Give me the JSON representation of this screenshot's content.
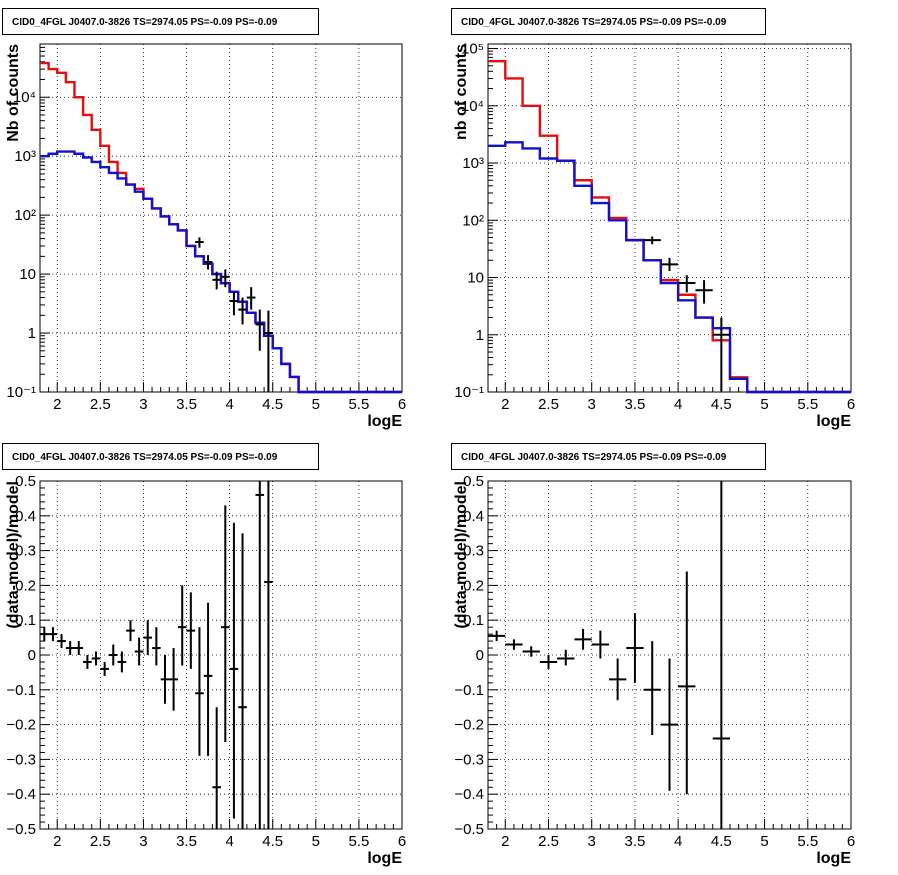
{
  "chart_data": [
    {
      "id": "top-left",
      "type": "step-histogram",
      "title": "CID0_4FGL J0407.0-3826 TS=2974.05 PS=-0.09 PS=-0.09",
      "xlabel": "logE",
      "ylabel": "Nb of counts",
      "xlim": [
        1.8,
        6.0
      ],
      "ylim": [
        0.1,
        80000
      ],
      "yscale": "log",
      "grid": true,
      "x_ticks": [
        2,
        2.5,
        3,
        3.5,
        4,
        4.5,
        5,
        5.5,
        6
      ],
      "x_tick_labels": [
        "2",
        "2.5",
        "3",
        "3.5",
        "4",
        "4.5",
        "5",
        "5.5",
        "6"
      ],
      "y_ticks": [
        0.1,
        1,
        10,
        100,
        1000,
        10000
      ],
      "y_tick_labels": [
        "10⁻¹",
        "1",
        "10",
        "10²",
        "10³",
        "10⁴"
      ],
      "bin_edges": [
        1.8,
        1.9,
        2.0,
        2.1,
        2.2,
        2.3,
        2.4,
        2.5,
        2.6,
        2.7,
        2.8,
        2.9,
        3.0,
        3.1,
        3.2,
        3.3,
        3.4,
        3.5,
        3.6,
        3.7,
        3.8,
        3.9,
        4.0,
        4.1,
        4.2,
        4.3,
        4.4,
        4.5,
        4.6,
        4.7,
        4.8,
        4.9,
        5.0,
        5.1,
        5.2,
        5.3,
        5.4,
        5.5,
        5.6,
        5.7,
        5.8,
        5.9,
        6.0
      ],
      "series": [
        {
          "color": "#e01010",
          "values": [
            38000,
            30000,
            26000,
            18000,
            10000,
            5000,
            2800,
            1500,
            800,
            520,
            330,
            280,
            190,
            130,
            95,
            70,
            55,
            30,
            20,
            15,
            10,
            7,
            5,
            3.4,
            2.2,
            1.5,
            0.9,
            0.55,
            0.3,
            0.18,
            0.1,
            0.1,
            0.1,
            0.1,
            0.1,
            0.1,
            0.1,
            0.1,
            0.1,
            0.1,
            0.1,
            0.1
          ]
        },
        {
          "color": "#1010d0",
          "values": [
            1000,
            1100,
            1200,
            1200,
            1100,
            950,
            800,
            650,
            520,
            420,
            330,
            250,
            190,
            130,
            95,
            70,
            55,
            30,
            20,
            15,
            10,
            7,
            5,
            3.4,
            2.2,
            1.5,
            0.9,
            0.55,
            0.3,
            0.18,
            0.1,
            0.1,
            0.1,
            0.1,
            0.1,
            0.1,
            0.1,
            0.1,
            0.1,
            0.1,
            0.1,
            0.1
          ]
        }
      ],
      "data_points": [
        {
          "x": 3.65,
          "y": 35,
          "ylo": 28,
          "yhi": 42,
          "xerr": 0.05
        },
        {
          "x": 3.75,
          "y": 16,
          "ylo": 12,
          "yhi": 21,
          "xerr": 0.05
        },
        {
          "x": 3.85,
          "y": 8,
          "ylo": 5.5,
          "yhi": 11,
          "xerr": 0.05
        },
        {
          "x": 3.95,
          "y": 9,
          "ylo": 6,
          "yhi": 12,
          "xerr": 0.05
        },
        {
          "x": 4.05,
          "y": 3.5,
          "ylo": 2,
          "yhi": 5,
          "xerr": 0.05
        },
        {
          "x": 4.15,
          "y": 2.5,
          "ylo": 1.4,
          "yhi": 4,
          "xerr": 0.05
        },
        {
          "x": 4.25,
          "y": 4,
          "ylo": 2.5,
          "yhi": 6,
          "xerr": 0.05
        },
        {
          "x": 4.35,
          "y": 1.4,
          "ylo": 0.5,
          "yhi": 2.5,
          "xerr": 0.05
        },
        {
          "x": 4.45,
          "y": 1.0,
          "ylo": 0.1,
          "yhi": 2.4,
          "xerr": 0.05
        }
      ]
    },
    {
      "id": "top-right",
      "type": "step-histogram",
      "title": "CID0_4FGL J0407.0-3826 TS=2974.05 PS=-0.09 PS=-0.09",
      "xlabel": "logE",
      "ylabel": "nb of counts",
      "xlim": [
        1.8,
        6.0
      ],
      "ylim": [
        0.1,
        120000
      ],
      "yscale": "log",
      "grid": true,
      "x_ticks": [
        2,
        2.5,
        3,
        3.5,
        4,
        4.5,
        5,
        5.5,
        6
      ],
      "x_tick_labels": [
        "2",
        "2.5",
        "3",
        "3.5",
        "4",
        "4.5",
        "5",
        "5.5",
        "6"
      ],
      "y_ticks": [
        0.1,
        1,
        10,
        100,
        1000,
        10000,
        100000
      ],
      "y_tick_labels": [
        "10⁻¹",
        "1",
        "10",
        "10²",
        "10³",
        "10⁴",
        "10⁵"
      ],
      "bin_edges": [
        1.8,
        2.0,
        2.2,
        2.4,
        2.6,
        2.8,
        3.0,
        3.2,
        3.4,
        3.6,
        3.8,
        4.0,
        4.2,
        4.4,
        4.6,
        4.8,
        5.0,
        5.2,
        5.4,
        5.6,
        5.8,
        6.0
      ],
      "series": [
        {
          "color": "#e01010",
          "values": [
            60000,
            30000,
            10000,
            3000,
            1100,
            500,
            250,
            110,
            45,
            20,
            9,
            5,
            2,
            0.8,
            0.18,
            0.1,
            0.1,
            0.1,
            0.1,
            0.1,
            0.1
          ]
        },
        {
          "color": "#1010d0",
          "values": [
            2000,
            2300,
            1800,
            1200,
            1100,
            400,
            200,
            100,
            45,
            20,
            8,
            4,
            2,
            1.3,
            0.17,
            0.1,
            0.1,
            0.1,
            0.1,
            0.1,
            0.1
          ]
        }
      ],
      "data_points": [
        {
          "x": 3.7,
          "y": 45,
          "ylo": 38,
          "yhi": 52,
          "xerr": 0.1
        },
        {
          "x": 3.9,
          "y": 17,
          "ylo": 13,
          "yhi": 22,
          "xerr": 0.1
        },
        {
          "x": 4.1,
          "y": 8,
          "ylo": 5.5,
          "yhi": 11,
          "xerr": 0.1
        },
        {
          "x": 4.3,
          "y": 6,
          "ylo": 3.5,
          "yhi": 9,
          "xerr": 0.1
        },
        {
          "x": 4.5,
          "y": 1.0,
          "ylo": 0.1,
          "yhi": 2.0,
          "xerr": 0.1
        }
      ]
    },
    {
      "id": "bottom-left",
      "type": "scatter-errorbar",
      "title": "CID0_4FGL J0407.0-3826 TS=2974.05 PS=-0.09 PS=-0.09",
      "xlabel": "logE",
      "ylabel": "(data-model)/model",
      "xlim": [
        1.8,
        6.0
      ],
      "ylim": [
        -0.5,
        0.5
      ],
      "yscale": "linear",
      "grid": true,
      "x_ticks": [
        2,
        2.5,
        3,
        3.5,
        4,
        4.5,
        5,
        5.5,
        6
      ],
      "x_tick_labels": [
        "2",
        "2.5",
        "3",
        "3.5",
        "4",
        "4.5",
        "5",
        "5.5",
        "6"
      ],
      "y_ticks": [
        -0.5,
        -0.4,
        -0.3,
        -0.2,
        -0.1,
        0,
        0.1,
        0.2,
        0.3,
        0.4,
        0.5
      ],
      "y_tick_labels": [
        "−0.5",
        "−0.4",
        "−0.3",
        "−0.2",
        "−0.1",
        "0",
        "0.1",
        "0.2",
        "0.3",
        "0.4",
        "0.5"
      ],
      "data_points": [
        {
          "x": 1.85,
          "y": 0.06,
          "ylo": 0.04,
          "yhi": 0.08,
          "xerr": 0.05
        },
        {
          "x": 1.95,
          "y": 0.06,
          "ylo": 0.04,
          "yhi": 0.08,
          "xerr": 0.05
        },
        {
          "x": 2.05,
          "y": 0.04,
          "ylo": 0.02,
          "yhi": 0.06,
          "xerr": 0.05
        },
        {
          "x": 2.15,
          "y": 0.02,
          "ylo": 0.0,
          "yhi": 0.04,
          "xerr": 0.05
        },
        {
          "x": 2.25,
          "y": 0.02,
          "ylo": -0.0,
          "yhi": 0.04,
          "xerr": 0.05
        },
        {
          "x": 2.35,
          "y": -0.02,
          "ylo": -0.04,
          "yhi": 0.0,
          "xerr": 0.05
        },
        {
          "x": 2.45,
          "y": -0.01,
          "ylo": -0.03,
          "yhi": 0.01,
          "xerr": 0.05
        },
        {
          "x": 2.55,
          "y": -0.04,
          "ylo": -0.06,
          "yhi": -0.02,
          "xerr": 0.05
        },
        {
          "x": 2.65,
          "y": 0.0,
          "ylo": -0.03,
          "yhi": 0.03,
          "xerr": 0.05
        },
        {
          "x": 2.75,
          "y": -0.02,
          "ylo": -0.05,
          "yhi": 0.01,
          "xerr": 0.05
        },
        {
          "x": 2.85,
          "y": 0.07,
          "ylo": 0.04,
          "yhi": 0.1,
          "xerr": 0.05
        },
        {
          "x": 2.95,
          "y": 0.01,
          "ylo": -0.03,
          "yhi": 0.05,
          "xerr": 0.05
        },
        {
          "x": 3.05,
          "y": 0.05,
          "ylo": 0.0,
          "yhi": 0.1,
          "xerr": 0.05
        },
        {
          "x": 3.15,
          "y": 0.02,
          "ylo": -0.03,
          "yhi": 0.08,
          "xerr": 0.05
        },
        {
          "x": 3.25,
          "y": -0.07,
          "ylo": -0.14,
          "yhi": 0.0,
          "xerr": 0.05
        },
        {
          "x": 3.35,
          "y": -0.07,
          "ylo": -0.16,
          "yhi": 0.02,
          "xerr": 0.05
        },
        {
          "x": 3.45,
          "y": 0.08,
          "ylo": -0.03,
          "yhi": 0.2,
          "xerr": 0.05
        },
        {
          "x": 3.55,
          "y": 0.07,
          "ylo": -0.04,
          "yhi": 0.18,
          "xerr": 0.05
        },
        {
          "x": 3.65,
          "y": -0.11,
          "ylo": -0.29,
          "yhi": 0.08,
          "xerr": 0.05
        },
        {
          "x": 3.75,
          "y": -0.06,
          "ylo": -0.29,
          "yhi": 0.15,
          "xerr": 0.05
        },
        {
          "x": 3.85,
          "y": -0.38,
          "ylo": -0.5,
          "yhi": -0.15,
          "xerr": 0.05
        },
        {
          "x": 3.95,
          "y": 0.08,
          "ylo": -0.25,
          "yhi": 0.43,
          "xerr": 0.05
        },
        {
          "x": 4.05,
          "y": -0.04,
          "ylo": -0.47,
          "yhi": 0.38,
          "xerr": 0.05
        },
        {
          "x": 4.15,
          "y": -0.15,
          "ylo": -0.5,
          "yhi": 0.35,
          "xerr": 0.05
        },
        {
          "x": 4.35,
          "y": 0.46,
          "ylo": -0.5,
          "yhi": 0.5,
          "xerr": 0.05
        },
        {
          "x": 4.45,
          "y": 0.21,
          "ylo": -0.5,
          "yhi": 0.5,
          "xerr": 0.05
        }
      ]
    },
    {
      "id": "bottom-right",
      "type": "scatter-errorbar",
      "title": "CID0_4FGL J0407.0-3826 TS=2974.05 PS=-0.09 PS=-0.09",
      "xlabel": "logE",
      "ylabel": "(data-model)/model",
      "xlim": [
        1.8,
        6.0
      ],
      "ylim": [
        -0.5,
        0.5
      ],
      "yscale": "linear",
      "grid": true,
      "x_ticks": [
        2,
        2.5,
        3,
        3.5,
        4,
        4.5,
        5,
        5.5,
        6
      ],
      "x_tick_labels": [
        "2",
        "2.5",
        "3",
        "3.5",
        "4",
        "4.5",
        "5",
        "5.5",
        "6"
      ],
      "y_ticks": [
        -0.5,
        -0.4,
        -0.3,
        -0.2,
        -0.1,
        0,
        0.1,
        0.2,
        0.3,
        0.4,
        0.5
      ],
      "y_tick_labels": [
        "−0.5",
        "−0.4",
        "−0.3",
        "−0.2",
        "−0.1",
        "0",
        "0.1",
        "0.2",
        "0.3",
        "0.4",
        "0.5"
      ],
      "data_points": [
        {
          "x": 1.9,
          "y": 0.055,
          "ylo": 0.04,
          "yhi": 0.07,
          "xerr": 0.1
        },
        {
          "x": 2.1,
          "y": 0.03,
          "ylo": 0.015,
          "yhi": 0.045,
          "xerr": 0.1
        },
        {
          "x": 2.3,
          "y": 0.01,
          "ylo": -0.005,
          "yhi": 0.025,
          "xerr": 0.1
        },
        {
          "x": 2.5,
          "y": -0.02,
          "ylo": -0.04,
          "yhi": 0.0,
          "xerr": 0.1
        },
        {
          "x": 2.7,
          "y": -0.01,
          "ylo": -0.03,
          "yhi": 0.015,
          "xerr": 0.1
        },
        {
          "x": 2.9,
          "y": 0.045,
          "ylo": 0.015,
          "yhi": 0.075,
          "xerr": 0.1
        },
        {
          "x": 3.1,
          "y": 0.03,
          "ylo": -0.01,
          "yhi": 0.07,
          "xerr": 0.1
        },
        {
          "x": 3.3,
          "y": -0.07,
          "ylo": -0.13,
          "yhi": -0.01,
          "xerr": 0.1
        },
        {
          "x": 3.5,
          "y": 0.02,
          "ylo": -0.08,
          "yhi": 0.12,
          "xerr": 0.1
        },
        {
          "x": 3.7,
          "y": -0.1,
          "ylo": -0.23,
          "yhi": 0.04,
          "xerr": 0.1
        },
        {
          "x": 3.9,
          "y": -0.2,
          "ylo": -0.39,
          "yhi": -0.01,
          "xerr": 0.1
        },
        {
          "x": 4.1,
          "y": -0.09,
          "ylo": -0.4,
          "yhi": 0.24,
          "xerr": 0.1
        },
        {
          "x": 4.5,
          "y": -0.24,
          "ylo": -0.5,
          "yhi": 0.5,
          "xerr": 0.1
        }
      ]
    }
  ]
}
